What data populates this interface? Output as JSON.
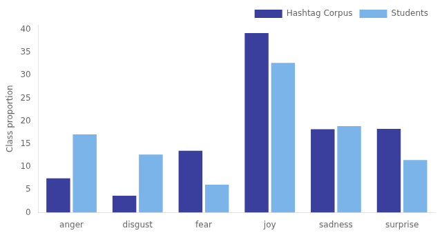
{
  "chart_data": {
    "type": "bar",
    "categories": [
      "anger",
      "disgust",
      "fear",
      "joy",
      "sadness",
      "surprise"
    ],
    "series": [
      {
        "name": "Hashtag Corpus",
        "color": "#3A3F9E",
        "values": [
          7.5,
          3.7,
          13.5,
          39.2,
          18.2,
          18.3
        ]
      },
      {
        "name": "Students",
        "color": "#7AB4E8",
        "values": [
          17.1,
          12.7,
          6.1,
          32.7,
          18.9,
          11.5
        ]
      }
    ],
    "ylabel": "Class proportion",
    "ylim": [
      0,
      41
    ],
    "yticks": [
      0,
      5,
      10,
      15,
      20,
      25,
      30,
      35,
      40
    ],
    "grid": false,
    "legend": "upper right"
  }
}
